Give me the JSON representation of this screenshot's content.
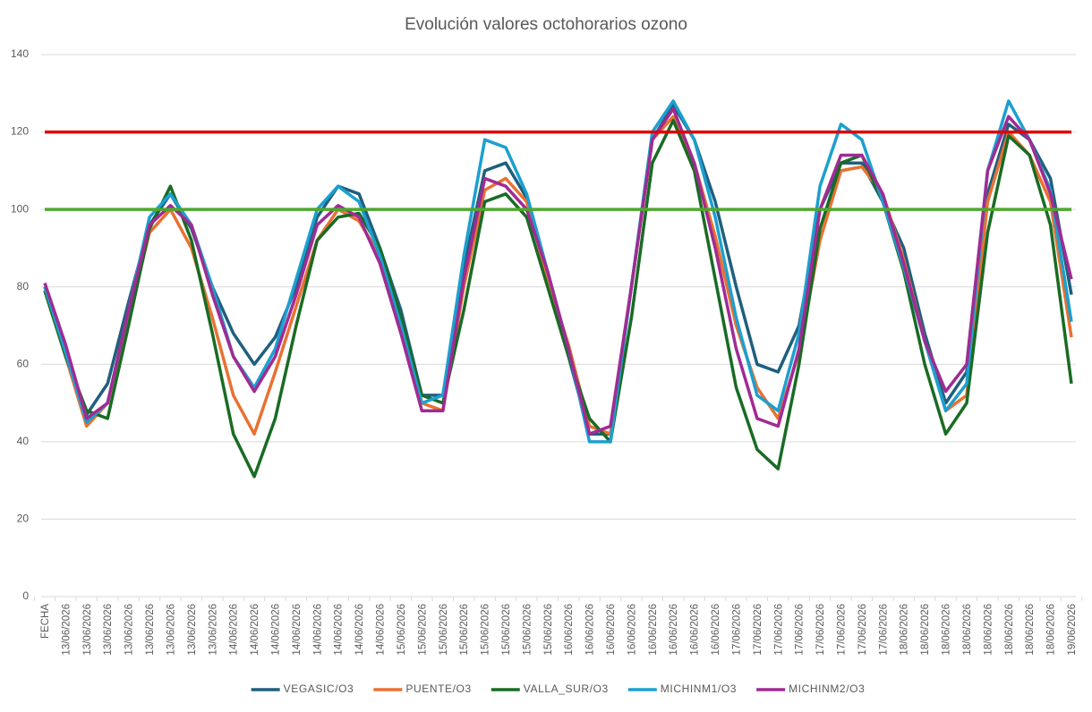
{
  "chart_data": {
    "type": "line",
    "title": "Evolución valores octohorarios ozono",
    "categories": [
      "FECHA",
      "13/06/2026",
      "13/06/2026",
      "13/06/2026",
      "13/06/2026",
      "13/06/2026",
      "13/06/2026",
      "13/06/2026",
      "13/06/2026",
      "14/06/2026",
      "14/06/2026",
      "14/06/2026",
      "14/06/2026",
      "14/06/2026",
      "14/06/2026",
      "14/06/2026",
      "14/06/2026",
      "15/06/2026",
      "15/06/2026",
      "15/06/2026",
      "15/06/2026",
      "15/06/2026",
      "15/06/2026",
      "15/06/2026",
      "15/06/2026",
      "16/06/2026",
      "16/06/2026",
      "16/06/2026",
      "16/06/2026",
      "16/06/2026",
      "16/06/2026",
      "16/06/2026",
      "16/06/2026",
      "17/06/2026",
      "17/06/2026",
      "17/06/2026",
      "17/06/2026",
      "17/06/2026",
      "17/06/2026",
      "17/06/2026",
      "17/06/2026",
      "18/06/2026",
      "18/06/2026",
      "18/06/2026",
      "18/06/2026",
      "18/06/2026",
      "18/06/2026",
      "18/06/2026",
      "18/06/2026",
      "19/06/2026"
    ],
    "series": [
      {
        "name": "VEGASIC/O3",
        "color": "#1f5f7e",
        "values": [
          80,
          62,
          47,
          55,
          76,
          96,
          104,
          95,
          80,
          68,
          60,
          67,
          80,
          98,
          106,
          104,
          90,
          74,
          52,
          52,
          85,
          110,
          112,
          103,
          82,
          62,
          42,
          42,
          80,
          118,
          127,
          118,
          102,
          80,
          60,
          58,
          70,
          100,
          112,
          112,
          102,
          90,
          68,
          50,
          58,
          104,
          122,
          118,
          108,
          78
        ]
      },
      {
        "name": "PUENTE/O3",
        "color": "#e97132",
        "values": [
          79,
          62,
          44,
          50,
          72,
          94,
          100,
          90,
          72,
          52,
          42,
          58,
          75,
          92,
          100,
          97,
          88,
          70,
          50,
          48,
          80,
          105,
          108,
          102,
          82,
          65,
          44,
          42,
          80,
          118,
          124,
          112,
          93,
          70,
          54,
          46,
          63,
          92,
          110,
          111,
          104,
          87,
          66,
          48,
          52,
          102,
          120,
          114,
          102,
          67
        ]
      },
      {
        "name": "VALLA_SUR/O3",
        "color": "#196b24",
        "values": [
          79,
          62,
          48,
          46,
          70,
          95,
          106,
          92,
          68,
          42,
          31,
          46,
          70,
          92,
          98,
          99,
          90,
          72,
          52,
          50,
          74,
          102,
          104,
          98,
          80,
          62,
          46,
          40,
          72,
          112,
          123,
          110,
          82,
          54,
          38,
          33,
          60,
          95,
          112,
          114,
          102,
          84,
          60,
          42,
          50,
          94,
          119,
          114,
          96,
          55
        ]
      },
      {
        "name": "MICHINM1/O3",
        "color": "#1ba0cf",
        "values": [
          80,
          63,
          45,
          50,
          74,
          98,
          104,
          96,
          80,
          62,
          54,
          64,
          82,
          100,
          106,
          102,
          88,
          70,
          50,
          52,
          88,
          118,
          116,
          104,
          84,
          64,
          40,
          40,
          80,
          120,
          128,
          118,
          98,
          72,
          52,
          48,
          68,
          106,
          122,
          118,
          102,
          85,
          66,
          48,
          55,
          110,
          128,
          118,
          105,
          71
        ]
      },
      {
        "name": "MICHINM2/O3",
        "color": "#a02b93",
        "values": [
          81,
          65,
          46,
          50,
          74,
          96,
          101,
          96,
          78,
          62,
          53,
          62,
          78,
          96,
          101,
          98,
          86,
          68,
          48,
          48,
          82,
          108,
          106,
          100,
          84,
          64,
          42,
          44,
          80,
          118,
          126,
          112,
          90,
          64,
          46,
          44,
          64,
          100,
          114,
          114,
          104,
          86,
          66,
          53,
          60,
          110,
          124,
          118,
          104,
          82
        ]
      }
    ],
    "reference_lines": [
      {
        "value": 120,
        "color": "#e00000"
      },
      {
        "value": 100,
        "color": "#4ea72e"
      }
    ],
    "ylim": [
      0,
      140
    ],
    "yticks": [
      0,
      20,
      40,
      60,
      80,
      100,
      120,
      140
    ],
    "grid": true,
    "legend": "bottom"
  }
}
